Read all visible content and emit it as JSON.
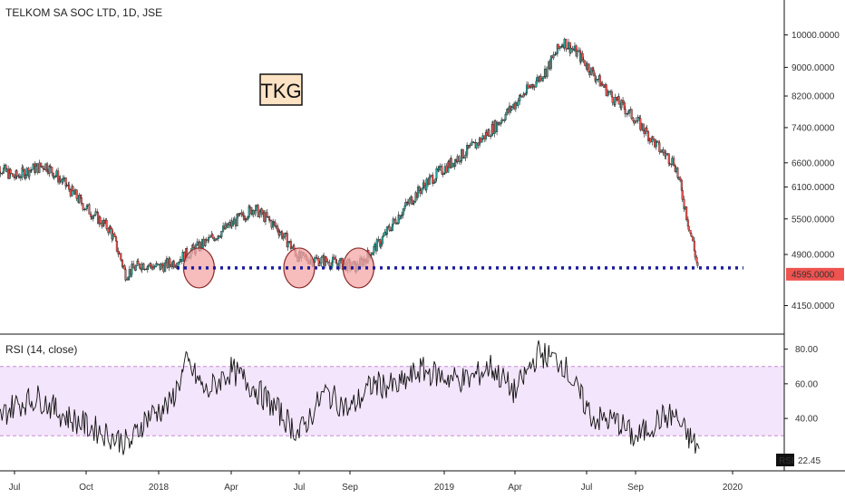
{
  "chart_data": [
    {
      "type": "candlestick",
      "title": "TELKOM SA SOC LTD, 1D, JSE",
      "annotation": "TKG",
      "yscale": "log",
      "ylim": [
        4000,
        10500
      ],
      "yticks": [
        "10000.0000",
        "9000.0000",
        "8200.0000",
        "7400.0000",
        "6600.0000",
        "6100.0000",
        "5500.0000",
        "4900.0000",
        "4595.0000",
        "4150.0000"
      ],
      "ytick_values": [
        10000,
        9000,
        8200,
        7400,
        6600,
        6100,
        5500,
        4900,
        4150
      ],
      "last_price_label": "4595.0000",
      "last_price_value": 4595,
      "support_level": 4690,
      "xticks": [
        "Jul",
        "Oct",
        "2018",
        "Apr",
        "Jul",
        "Sep",
        "2019",
        "Apr",
        "Jul",
        "Sep",
        "2020"
      ],
      "circled_dates": [
        "2018-02",
        "2018-07",
        "2018-09"
      ],
      "colors": {
        "up": "#26a69a",
        "down": "#ef5350",
        "line": "#1a1aa0",
        "circle": "#f4a6a6",
        "last_price": "#ef5350"
      },
      "price_path": [
        {
          "x": "2017-06-01",
          "y": 6600
        },
        {
          "x": "2017-07-01",
          "y": 6300
        },
        {
          "x": "2017-07-20",
          "y": 6450
        },
        {
          "x": "2017-08-10",
          "y": 6550
        },
        {
          "x": "2017-09-01",
          "y": 6200
        },
        {
          "x": "2017-10-01",
          "y": 5700
        },
        {
          "x": "2017-11-01",
          "y": 5300
        },
        {
          "x": "2017-11-20",
          "y": 4600
        },
        {
          "x": "2017-12-10",
          "y": 4750
        },
        {
          "x": "2018-01-01",
          "y": 4700
        },
        {
          "x": "2018-01-20",
          "y": 4780
        },
        {
          "x": "2018-02-10",
          "y": 4950
        },
        {
          "x": "2018-03-01",
          "y": 5100
        },
        {
          "x": "2018-04-01",
          "y": 5400
        },
        {
          "x": "2018-05-01",
          "y": 5700
        },
        {
          "x": "2018-06-01",
          "y": 5350
        },
        {
          "x": "2018-07-01",
          "y": 4850
        },
        {
          "x": "2018-08-01",
          "y": 4800
        },
        {
          "x": "2018-09-10",
          "y": 4700
        },
        {
          "x": "2018-10-10",
          "y": 5100
        },
        {
          "x": "2018-11-10",
          "y": 5700
        },
        {
          "x": "2018-12-10",
          "y": 6200
        },
        {
          "x": "2019-01-10",
          "y": 6600
        },
        {
          "x": "2019-02-10",
          "y": 7000
        },
        {
          "x": "2019-03-10",
          "y": 7500
        },
        {
          "x": "2019-04-10",
          "y": 8200
        },
        {
          "x": "2019-05-10",
          "y": 8900
        },
        {
          "x": "2019-06-01",
          "y": 9800
        },
        {
          "x": "2019-06-20",
          "y": 9400
        },
        {
          "x": "2019-07-10",
          "y": 8800
        },
        {
          "x": "2019-08-01",
          "y": 8200
        },
        {
          "x": "2019-09-01",
          "y": 7600
        },
        {
          "x": "2019-10-01",
          "y": 6900
        },
        {
          "x": "2019-10-20",
          "y": 6600
        },
        {
          "x": "2019-11-05",
          "y": 5500
        },
        {
          "x": "2019-11-20",
          "y": 4595
        }
      ]
    },
    {
      "type": "line",
      "title": "RSI (14, close)",
      "ylim": [
        15,
        85
      ],
      "yticks": [
        "80.00",
        "60.00",
        "40.00"
      ],
      "ytick_values": [
        80,
        60,
        40
      ],
      "bands": [
        30,
        70
      ],
      "last_value_label": "RSI",
      "last_value": "22.45",
      "colors": {
        "line": "#111111",
        "band": "#f3e5fb",
        "band_line": "#c98ad6"
      },
      "rsi_path": [
        {
          "x": "2017-06-01",
          "y": 36
        },
        {
          "x": "2017-07-01",
          "y": 48
        },
        {
          "x": "2017-08-01",
          "y": 52
        },
        {
          "x": "2017-09-01",
          "y": 42
        },
        {
          "x": "2017-10-01",
          "y": 36
        },
        {
          "x": "2017-11-01",
          "y": 30
        },
        {
          "x": "2017-11-25",
          "y": 25
        },
        {
          "x": "2017-12-15",
          "y": 40
        },
        {
          "x": "2018-01-15",
          "y": 48
        },
        {
          "x": "2018-02-05",
          "y": 72
        },
        {
          "x": "2018-03-01",
          "y": 55
        },
        {
          "x": "2018-04-01",
          "y": 68
        },
        {
          "x": "2018-05-01",
          "y": 58
        },
        {
          "x": "2018-06-01",
          "y": 45
        },
        {
          "x": "2018-07-01",
          "y": 31
        },
        {
          "x": "2018-08-01",
          "y": 55
        },
        {
          "x": "2018-09-01",
          "y": 45
        },
        {
          "x": "2018-10-01",
          "y": 60
        },
        {
          "x": "2018-11-01",
          "y": 58
        },
        {
          "x": "2018-12-01",
          "y": 68
        },
        {
          "x": "2019-01-01",
          "y": 64
        },
        {
          "x": "2019-02-01",
          "y": 62
        },
        {
          "x": "2019-03-01",
          "y": 70
        },
        {
          "x": "2019-04-01",
          "y": 55
        },
        {
          "x": "2019-05-01",
          "y": 78
        },
        {
          "x": "2019-06-01",
          "y": 72
        },
        {
          "x": "2019-06-20",
          "y": 55
        },
        {
          "x": "2019-07-10",
          "y": 40
        },
        {
          "x": "2019-08-10",
          "y": 38
        },
        {
          "x": "2019-09-01",
          "y": 28
        },
        {
          "x": "2019-10-01",
          "y": 40
        },
        {
          "x": "2019-10-20",
          "y": 42
        },
        {
          "x": "2019-11-05",
          "y": 30
        },
        {
          "x": "2019-11-20",
          "y": 22.45
        }
      ]
    }
  ]
}
